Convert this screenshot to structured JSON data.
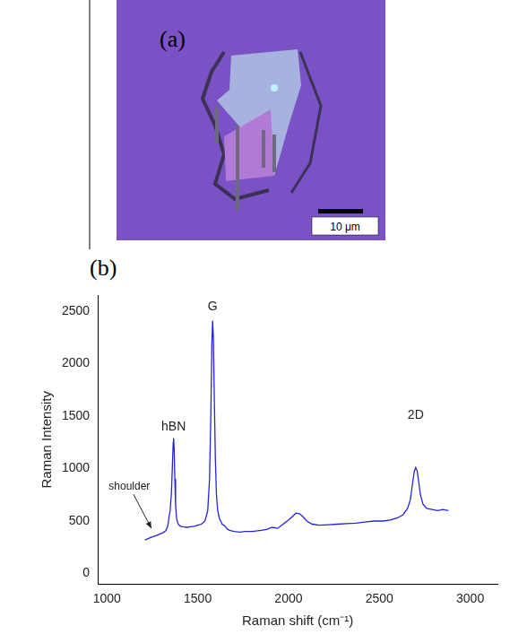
{
  "panels": {
    "a": {
      "label": "(a)",
      "scale_bar": "10 μm"
    },
    "b": {
      "label": "(b)"
    }
  },
  "chart_data": {
    "type": "line",
    "x_label": "Raman shift (cm⁻¹)",
    "y_label": "Raman Intensity",
    "x": [
      1210,
      1230,
      1250,
      1270,
      1290,
      1310,
      1325,
      1335,
      1342,
      1348,
      1355,
      1360,
      1365,
      1367,
      1370,
      1374,
      1378,
      1384,
      1392,
      1405,
      1420,
      1440,
      1460,
      1480,
      1500,
      1520,
      1540,
      1555,
      1565,
      1572,
      1578,
      1582,
      1586,
      1591,
      1597,
      1603,
      1610,
      1620,
      1635,
      1650,
      1665,
      1680,
      1700,
      1730,
      1760,
      1800,
      1840,
      1880,
      1910,
      1940,
      1970,
      2000,
      2020,
      2040,
      2060,
      2080,
      2100,
      2130,
      2170,
      2220,
      2270,
      2320,
      2370,
      2420,
      2470,
      2520,
      2560,
      2600,
      2630,
      2655,
      2670,
      2682,
      2692,
      2700,
      2708,
      2716,
      2726,
      2740,
      2760,
      2790,
      2820,
      2850,
      2880
    ],
    "values": [
      320,
      335,
      350,
      360,
      375,
      390,
      410,
      450,
      540,
      600,
      760,
      1000,
      1250,
      1290,
      1200,
      900,
      650,
      520,
      470,
      450,
      445,
      440,
      445,
      450,
      460,
      470,
      500,
      600,
      900,
      1500,
      2200,
      2410,
      2250,
      1700,
      1100,
      750,
      600,
      520,
      470,
      450,
      420,
      410,
      400,
      395,
      400,
      400,
      410,
      420,
      440,
      430,
      470,
      510,
      540,
      575,
      570,
      540,
      500,
      470,
      460,
      465,
      470,
      475,
      480,
      490,
      500,
      500,
      510,
      530,
      560,
      620,
      700,
      850,
      970,
      1010,
      980,
      880,
      750,
      660,
      620,
      610,
      600,
      610,
      600
    ],
    "color": "#2424d8",
    "xlim": [
      950,
      3150
    ],
    "xticks": [
      1000,
      1500,
      2000,
      2500,
      3000
    ],
    "ylim": [
      -100,
      2650
    ],
    "yticks": [
      0,
      500,
      1000,
      1500,
      2000,
      2500
    ],
    "grid": false,
    "annotations": [
      {
        "text": "hBN",
        "x": 1367,
        "y": 1340
      },
      {
        "text": "G",
        "x": 1582,
        "y": 2480
      },
      {
        "text": "2D",
        "x": 2700,
        "y": 1450
      },
      {
        "text": "shoulder",
        "x": 1010,
        "y": 780,
        "arrow_to": [
          1245,
          430
        ]
      }
    ]
  }
}
